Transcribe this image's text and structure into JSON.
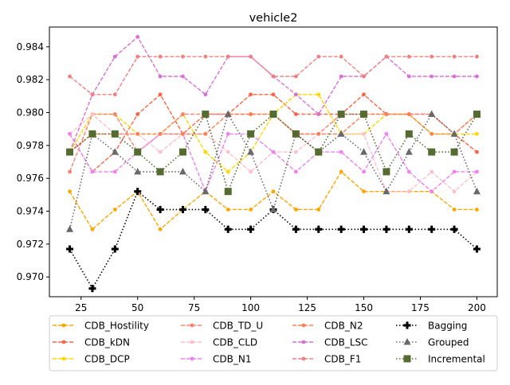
{
  "chart_data": {
    "type": "line",
    "title": "vehicle2",
    "xlabel": "",
    "ylabel": "",
    "xlim": [
      11,
      209
    ],
    "ylim": [
      0.9688,
      0.9852
    ],
    "grid": false,
    "legend_position": "bottom",
    "x": [
      20,
      30,
      40,
      50,
      60,
      70,
      80,
      90,
      100,
      110,
      120,
      130,
      140,
      150,
      160,
      170,
      180,
      190,
      200
    ],
    "x_ticks": [
      25,
      50,
      75,
      100,
      125,
      150,
      175,
      200
    ],
    "y_ticks": [
      0.97,
      0.972,
      0.974,
      0.976,
      0.978,
      0.98,
      0.982,
      0.984
    ],
    "x_tick_labels": [
      "25",
      "50",
      "75",
      "100",
      "125",
      "150",
      "175",
      "200"
    ],
    "y_tick_labels": [
      "0.970",
      "0.972",
      "0.974",
      "0.976",
      "0.978",
      "0.980",
      "0.982",
      "0.984"
    ],
    "series": [
      {
        "name": "CDB_Hostility",
        "color": "#ffa500",
        "linestyle": "dashed",
        "marker": "circle",
        "values": [
          0.9752,
          0.9729,
          0.9741,
          0.9752,
          0.9729,
          0.9741,
          0.9752,
          0.9741,
          0.9741,
          0.9752,
          0.9741,
          0.9741,
          0.9764,
          0.9752,
          0.9752,
          0.9752,
          0.9752,
          0.9741,
          0.9741
        ]
      },
      {
        "name": "CDB_kDN",
        "color": "#ff6347",
        "linestyle": "dashed",
        "marker": "circle",
        "values": [
          0.9787,
          0.9764,
          0.9776,
          0.9799,
          0.9811,
          0.9787,
          0.9799,
          0.9799,
          0.9811,
          0.9811,
          0.9799,
          0.9799,
          0.9799,
          0.9811,
          0.9799,
          0.9799,
          0.9799,
          0.9787,
          0.9776
        ]
      },
      {
        "name": "CDB_DCP",
        "color": "#ffd700",
        "linestyle": "dashed",
        "marker": "circle",
        "values": [
          0.9776,
          0.9799,
          0.9799,
          0.9787,
          0.9787,
          0.9799,
          0.9776,
          0.9764,
          0.9776,
          0.9799,
          0.9811,
          0.9811,
          0.9787,
          0.9787,
          0.9799,
          0.9799,
          0.9787,
          0.9787,
          0.9787
        ]
      },
      {
        "name": "CDB_TD_U",
        "color": "#fa8072",
        "linestyle": "dashed",
        "marker": "circle",
        "values": [
          0.9764,
          0.9799,
          0.9799,
          0.9776,
          0.9787,
          0.9799,
          0.9799,
          0.9799,
          0.9799,
          0.9799,
          0.9787,
          0.9787,
          0.9799,
          0.9799,
          0.9799,
          0.9799,
          0.9799,
          0.9787,
          0.9799
        ]
      },
      {
        "name": "CDB_CLD",
        "color": "#ffc0cb",
        "linestyle": "dashed",
        "marker": "circle",
        "values": [
          0.9787,
          0.9799,
          0.9787,
          0.9787,
          0.9776,
          0.9787,
          0.9787,
          0.9776,
          0.9764,
          0.9776,
          0.9776,
          0.9787,
          0.9787,
          0.9787,
          0.9752,
          0.9752,
          0.9764,
          0.9752,
          0.9764
        ]
      },
      {
        "name": "CDB_N1",
        "color": "#ee82ee",
        "linestyle": "dashed",
        "marker": "circle",
        "values": [
          0.9787,
          0.9764,
          0.9764,
          0.9776,
          0.9787,
          0.9787,
          0.9752,
          0.9787,
          0.9787,
          0.9776,
          0.9764,
          0.9776,
          0.9776,
          0.9764,
          0.9787,
          0.9764,
          0.9752,
          0.9764,
          0.9764
        ]
      },
      {
        "name": "CDB_N2",
        "color": "#ff7f50",
        "linestyle": "dashed",
        "marker": "circle",
        "values": [
          0.9776,
          0.9787,
          0.9787,
          0.9787,
          0.9787,
          0.9787,
          0.9787,
          0.9799,
          0.9799,
          0.9799,
          0.9787,
          0.9787,
          0.9787,
          0.9799,
          0.9799,
          0.9799,
          0.9787,
          0.9787,
          0.9799
        ]
      },
      {
        "name": "CDB_LSC",
        "color": "#da70d6",
        "linestyle": "dashed",
        "marker": "circle",
        "values": [
          0.9776,
          0.9811,
          0.9834,
          0.9846,
          0.9822,
          0.9822,
          0.9811,
          0.9834,
          0.9834,
          0.9822,
          0.9811,
          0.9799,
          0.9822,
          0.9822,
          0.9834,
          0.9822,
          0.9822,
          0.9822,
          0.9822
        ]
      },
      {
        "name": "CDB_F1",
        "color": "#f08080",
        "linestyle": "dashed",
        "marker": "circle",
        "values": [
          0.9822,
          0.9811,
          0.9811,
          0.9834,
          0.9834,
          0.9834,
          0.9834,
          0.9834,
          0.9834,
          0.9822,
          0.9822,
          0.9834,
          0.9834,
          0.9822,
          0.9834,
          0.9834,
          0.9834,
          0.9834,
          0.9834
        ]
      },
      {
        "name": "Bagging",
        "color": "#000000",
        "linestyle": "dotted",
        "marker": "plus",
        "values": [
          0.9717,
          0.9693,
          0.9717,
          0.9752,
          0.9741,
          0.9741,
          0.9741,
          0.9729,
          0.9729,
          0.9741,
          0.9729,
          0.9729,
          0.9729,
          0.9729,
          0.9729,
          0.9729,
          0.9729,
          0.9729,
          0.9717
        ]
      },
      {
        "name": "Grouped",
        "color": "#696969",
        "linestyle": "dotted",
        "marker": "triangle",
        "values": [
          0.9729,
          0.9787,
          0.9776,
          0.9764,
          0.9764,
          0.9764,
          0.9752,
          0.9799,
          0.9776,
          0.9741,
          0.9787,
          0.9776,
          0.9787,
          0.9776,
          0.9752,
          0.9776,
          0.9799,
          0.9787,
          0.9752
        ]
      },
      {
        "name": "Incremental",
        "color": "#556b2f",
        "linestyle": "dotted",
        "marker": "square",
        "values": [
          0.9776,
          0.9787,
          0.9787,
          0.9776,
          0.9764,
          0.9776,
          0.9799,
          0.9752,
          0.9787,
          0.9799,
          0.9787,
          0.9776,
          0.9799,
          0.9799,
          0.9764,
          0.9787,
          0.9776,
          0.9776,
          0.9799
        ]
      }
    ]
  }
}
